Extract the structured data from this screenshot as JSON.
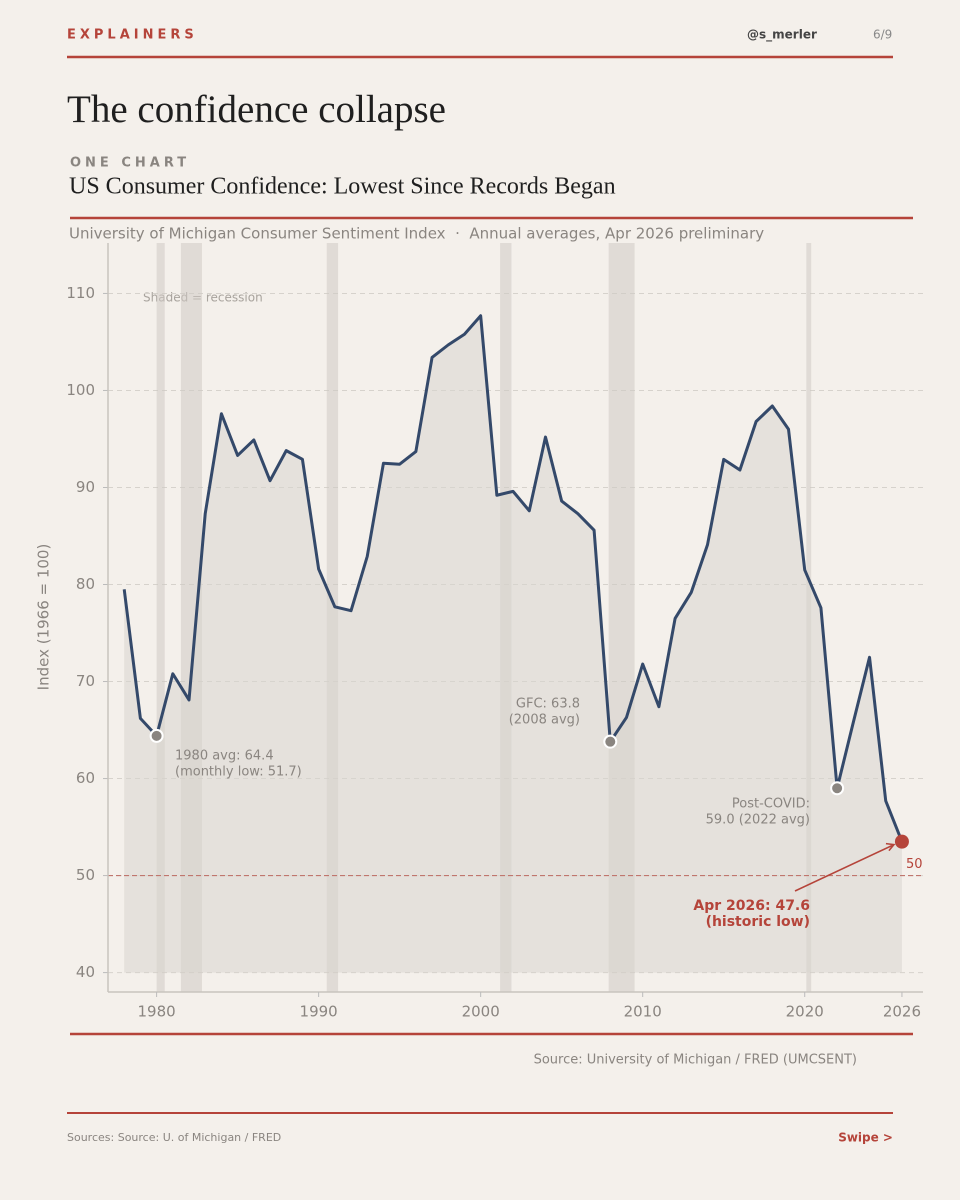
{
  "header": {
    "section": "EXPLAINERS",
    "handle": "@s_merler",
    "page": "6/9",
    "title": "The confidence collapse"
  },
  "chart_data": {
    "type": "line",
    "kicker": "ONE CHART",
    "title": "US Consumer Confidence: Lowest Since Records Began",
    "subtitle": "University of Michigan Consumer Sentiment Index  ·  Annual averages, Apr 2026 preliminary",
    "y_label": "Index (1966 = 100)",
    "x": [
      1978,
      1979,
      1980,
      1981,
      1982,
      1983,
      1984,
      1985,
      1986,
      1987,
      1988,
      1989,
      1990,
      1991,
      1992,
      1993,
      1994,
      1995,
      1996,
      1997,
      1998,
      1999,
      2000,
      2001,
      2002,
      2003,
      2004,
      2005,
      2006,
      2007,
      2008,
      2009,
      2010,
      2011,
      2012,
      2013,
      2014,
      2015,
      2016,
      2017,
      2018,
      2019,
      2020,
      2021,
      2022,
      2023,
      2024,
      2025,
      2026
    ],
    "series": [
      {
        "name": "Consumer Sentiment",
        "color": "#34496a",
        "values": [
          79.5,
          66.2,
          64.4,
          70.8,
          68.1,
          87.3,
          97.6,
          93.3,
          94.9,
          90.7,
          93.8,
          92.9,
          81.6,
          77.7,
          77.3,
          82.9,
          92.5,
          92.4,
          93.7,
          103.4,
          104.7,
          105.8,
          107.7,
          89.2,
          89.6,
          87.6,
          95.2,
          88.6,
          87.3,
          85.6,
          63.8,
          66.3,
          71.8,
          67.4,
          76.5,
          79.2,
          84.1,
          92.9,
          91.8,
          96.8,
          98.4,
          96.0,
          81.5,
          77.6,
          59.0,
          65.8,
          72.5,
          57.7,
          53.5
        ]
      }
    ],
    "recessions": [
      [
        1980,
        1980.5
      ],
      [
        1981.5,
        1982.8
      ],
      [
        1990.5,
        1991.2
      ],
      [
        2001.2,
        2001.9
      ],
      [
        2007.9,
        2009.5
      ],
      [
        2020.1,
        2020.4
      ]
    ],
    "recession_note": "Shaded = recession",
    "ref_line": 50,
    "annotations": [
      {
        "text": [
          "1980 avg: 64.4",
          "(monthly low: 51.7)"
        ]
      },
      {
        "text": [
          "GFC: 63.8",
          "(2008 avg)"
        ]
      },
      {
        "text": [
          "Post-COVID:",
          "59.0 (2022 avg)"
        ]
      },
      {
        "text": [
          "Apr 2026: 47.6",
          "(historic low)"
        ]
      }
    ],
    "xlim": [
      1977,
      2027.3
    ],
    "ylim": [
      38,
      115.2
    ],
    "xticks": [
      1980,
      1990,
      2000,
      2010,
      2020,
      2026
    ],
    "yticks": [
      40,
      50,
      60,
      70,
      80,
      90,
      100,
      110
    ],
    "grid": true,
    "source": "Source: University of Michigan / FRED (UMCSENT)"
  },
  "footer": {
    "sources": "Sources: Source: U. of Michigan / FRED",
    "swipe": "Swipe >"
  }
}
